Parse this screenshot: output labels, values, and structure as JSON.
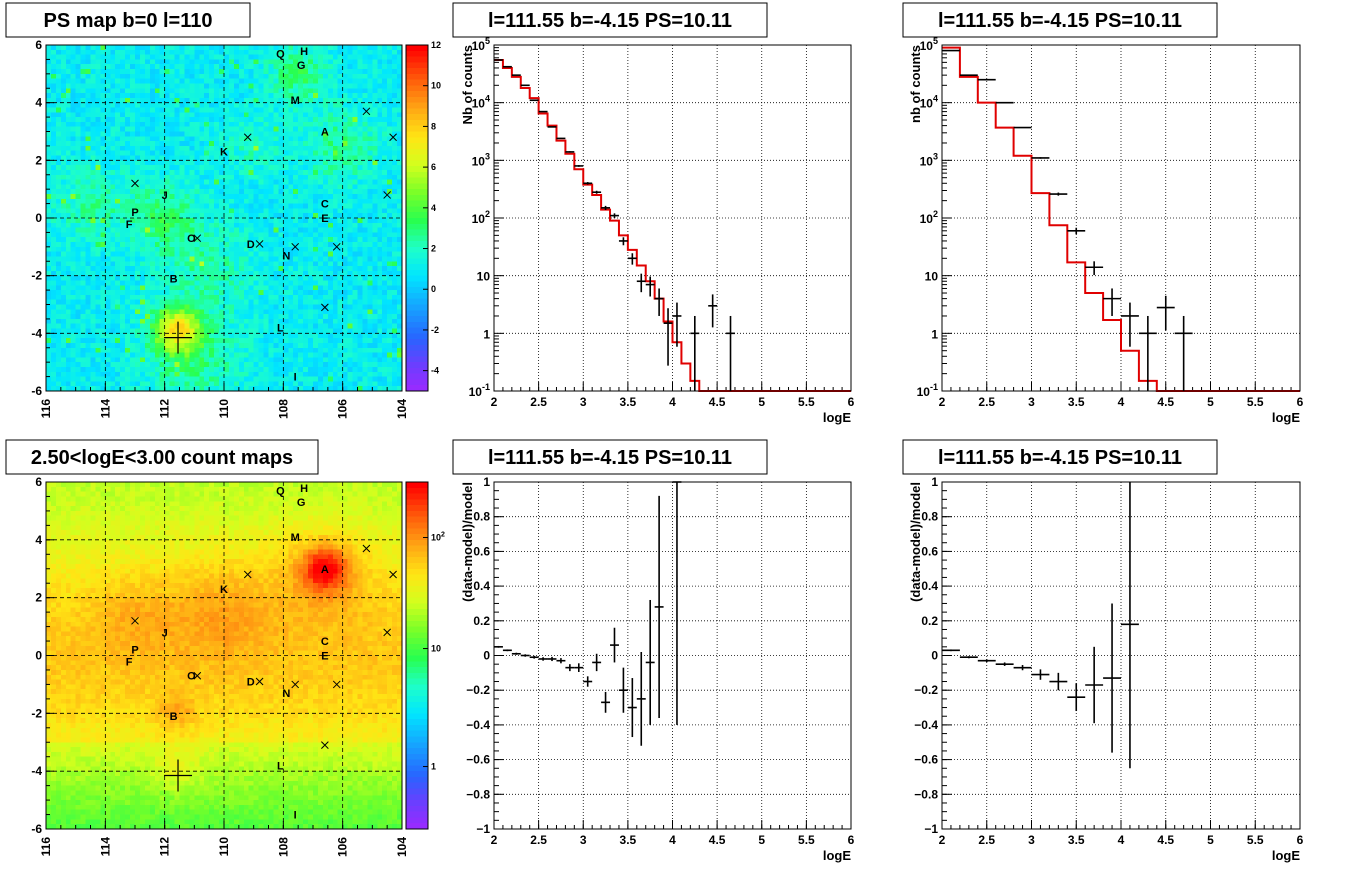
{
  "chart_data": [
    {
      "type": "heatmap",
      "title": "PS map b=0 l=110",
      "x_ticks": [
        "116",
        "114",
        "112",
        "110",
        "108",
        "106",
        "104"
      ],
      "y_ticks": [
        "6",
        "4",
        "2",
        "0",
        "-2",
        "-4",
        "-6"
      ],
      "xlim": [
        116,
        104
      ],
      "ylim": [
        -6,
        6
      ],
      "colorbar_ticks": [
        "12",
        "10",
        "8",
        "6",
        "4",
        "2",
        "0",
        "-2",
        "-4"
      ],
      "colorbar_range": [
        -5,
        12
      ],
      "colorscale": "linear",
      "grid": true,
      "sources": [
        {
          "name": "Q",
          "l": 108.1,
          "b": 5.7
        },
        {
          "name": "H",
          "l": 107.3,
          "b": 5.8
        },
        {
          "name": "G",
          "l": 107.4,
          "b": 5.3
        },
        {
          "name": "M",
          "l": 107.6,
          "b": 4.1
        },
        {
          "name": "A",
          "l": 106.6,
          "b": 3.0
        },
        {
          "name": "K",
          "l": 110.0,
          "b": 2.3
        },
        {
          "name": "J",
          "l": 112.0,
          "b": 0.8
        },
        {
          "name": "P",
          "l": 113.0,
          "b": 0.2
        },
        {
          "name": "F",
          "l": 113.2,
          "b": -0.2
        },
        {
          "name": "C",
          "l": 106.6,
          "b": 0.5
        },
        {
          "name": "E",
          "l": 106.6,
          "b": 0.0
        },
        {
          "name": "O",
          "l": 111.1,
          "b": -0.7
        },
        {
          "name": "D",
          "l": 109.1,
          "b": -0.9
        },
        {
          "name": "N",
          "l": 107.9,
          "b": -1.3
        },
        {
          "name": "B",
          "l": 111.7,
          "b": -2.1
        },
        {
          "name": "L",
          "l": 108.1,
          "b": -3.8
        },
        {
          "name": "I",
          "l": 107.6,
          "b": -5.5
        }
      ],
      "crosses": [
        {
          "l": 113.0,
          "b": 1.2
        },
        {
          "l": 109.2,
          "b": 2.8
        },
        {
          "l": 110.9,
          "b": -0.7
        },
        {
          "l": 108.8,
          "b": -0.9
        },
        {
          "l": 107.6,
          "b": -1.0
        },
        {
          "l": 106.2,
          "b": -1.0
        },
        {
          "l": 106.6,
          "b": -3.1
        },
        {
          "l": 105.2,
          "b": 3.7
        },
        {
          "l": 104.3,
          "b": 2.8
        },
        {
          "l": 104.5,
          "b": 0.8
        }
      ],
      "big_cross": {
        "l": 111.55,
        "b": -4.15
      }
    },
    {
      "type": "line",
      "title": "l=111.55 b=-4.15 PS=10.11",
      "xlabel": "logE",
      "ylabel": "Nb of counts",
      "xlim": [
        2,
        6
      ],
      "ylim": [
        0.1,
        100000
      ],
      "yscale": "log",
      "x_ticks": [
        "2",
        "2.5",
        "3",
        "3.5",
        "4",
        "4.5",
        "5",
        "5.5",
        "6"
      ],
      "y_ticks": [
        "10^-1",
        "1",
        "10",
        "10^2",
        "10^3",
        "10^4",
        "10^5"
      ],
      "grid": true,
      "bin_width": 0.1,
      "data": [
        {
          "x": 2.05,
          "y": 55000
        },
        {
          "x": 2.15,
          "y": 42000
        },
        {
          "x": 2.25,
          "y": 30000
        },
        {
          "x": 2.35,
          "y": 20000
        },
        {
          "x": 2.45,
          "y": 11000
        },
        {
          "x": 2.55,
          "y": 7000
        },
        {
          "x": 2.65,
          "y": 3800
        },
        {
          "x": 2.75,
          "y": 2400
        },
        {
          "x": 2.85,
          "y": 1400
        },
        {
          "x": 2.95,
          "y": 800
        },
        {
          "x": 3.05,
          "y": 400
        },
        {
          "x": 3.15,
          "y": 280
        },
        {
          "x": 3.25,
          "y": 150
        },
        {
          "x": 3.35,
          "y": 110
        },
        {
          "x": 3.45,
          "y": 40
        },
        {
          "x": 3.55,
          "y": 20
        },
        {
          "x": 3.65,
          "y": 8
        },
        {
          "x": 3.75,
          "y": 7
        },
        {
          "x": 3.85,
          "y": 4
        },
        {
          "x": 3.95,
          "y": 1.5
        },
        {
          "x": 4.05,
          "y": 2
        },
        {
          "x": 4.25,
          "y": 1
        },
        {
          "x": 4.45,
          "y": 3
        },
        {
          "x": 4.65,
          "y": 1
        }
      ],
      "model": [
        55000,
        40000,
        28000,
        18000,
        12000,
        6500,
        4000,
        2200,
        1300,
        700,
        380,
        250,
        140,
        90,
        50,
        28,
        15,
        8,
        4,
        1.6,
        0.7,
        0.3,
        0.15,
        0.1,
        0.1,
        0.1,
        0.1,
        0.1,
        0.1,
        0.1,
        0.1,
        0.1,
        0.1,
        0.1,
        0.1,
        0.1,
        0.1,
        0.1,
        0.1,
        0.1
      ]
    },
    {
      "type": "line",
      "title": "l=111.55 b=-4.15 PS=10.11",
      "xlabel": "logE",
      "ylabel": "nb of counts",
      "xlim": [
        2,
        6
      ],
      "ylim": [
        0.1,
        100000
      ],
      "yscale": "log",
      "x_ticks": [
        "2",
        "2.5",
        "3",
        "3.5",
        "4",
        "4.5",
        "5",
        "5.5",
        "6"
      ],
      "y_ticks": [
        "10^-1",
        "1",
        "10",
        "10^2",
        "10^3",
        "10^4",
        "10^5"
      ],
      "grid": true,
      "bin_width": 0.2,
      "data": [
        {
          "x": 2.1,
          "y": 80000
        },
        {
          "x": 2.3,
          "y": 30000
        },
        {
          "x": 2.5,
          "y": 25000
        },
        {
          "x": 2.7,
          "y": 10000
        },
        {
          "x": 2.9,
          "y": 3700
        },
        {
          "x": 3.1,
          "y": 1100
        },
        {
          "x": 3.3,
          "y": 260
        },
        {
          "x": 3.5,
          "y": 60
        },
        {
          "x": 3.7,
          "y": 14
        },
        {
          "x": 3.9,
          "y": 4
        },
        {
          "x": 4.1,
          "y": 2
        },
        {
          "x": 4.3,
          "y": 1
        },
        {
          "x": 4.5,
          "y": 2.8
        },
        {
          "x": 4.7,
          "y": 1
        }
      ],
      "model": [
        90000,
        28000,
        10000,
        3700,
        1200,
        270,
        75,
        17,
        5,
        1.7,
        0.5,
        0.15,
        0.1,
        0.1,
        0.1,
        0.1,
        0.1,
        0.1,
        0.1,
        0.1
      ]
    },
    {
      "type": "heatmap",
      "title": "2.50<logE<3.00 count maps",
      "x_ticks": [
        "116",
        "114",
        "112",
        "110",
        "108",
        "106",
        "104"
      ],
      "y_ticks": [
        "6",
        "4",
        "2",
        "0",
        "-2",
        "-4",
        "-6"
      ],
      "xlim": [
        116,
        104
      ],
      "ylim": [
        -6,
        6
      ],
      "colorbar_ticks": [
        "10^2",
        "10",
        "1"
      ],
      "colorscale": "log",
      "grid": true
    },
    {
      "type": "scatter",
      "title": "l=111.55 b=-4.15 PS=10.11",
      "xlabel": "logE",
      "ylabel": "(data-model)/model",
      "xlim": [
        2,
        6
      ],
      "ylim": [
        -1,
        1
      ],
      "x_ticks": [
        "2",
        "2.5",
        "3",
        "3.5",
        "4",
        "4.5",
        "5",
        "5.5",
        "6"
      ],
      "y_ticks": [
        "1",
        "0.8",
        "0.6",
        "0.4",
        "0.2",
        "0",
        "-0.2",
        "-0.4",
        "-0.6",
        "-0.8",
        "-1"
      ],
      "grid": true,
      "bin_width": 0.1,
      "data": [
        {
          "x": 2.05,
          "y": 0.05,
          "err": 0.005
        },
        {
          "x": 2.15,
          "y": 0.03,
          "err": 0.005
        },
        {
          "x": 2.25,
          "y": 0.01,
          "err": 0.006
        },
        {
          "x": 2.35,
          "y": 0.0,
          "err": 0.007
        },
        {
          "x": 2.45,
          "y": -0.01,
          "err": 0.008
        },
        {
          "x": 2.55,
          "y": -0.02,
          "err": 0.01
        },
        {
          "x": 2.65,
          "y": -0.02,
          "err": 0.012
        },
        {
          "x": 2.75,
          "y": -0.03,
          "err": 0.015
        },
        {
          "x": 2.85,
          "y": -0.07,
          "err": 0.02
        },
        {
          "x": 2.95,
          "y": -0.07,
          "err": 0.025
        },
        {
          "x": 3.05,
          "y": -0.15,
          "err": 0.03
        },
        {
          "x": 3.15,
          "y": -0.04,
          "err": 0.05
        },
        {
          "x": 3.25,
          "y": -0.27,
          "err": 0.06
        },
        {
          "x": 3.35,
          "y": 0.06,
          "err": 0.1
        },
        {
          "x": 3.45,
          "y": -0.2,
          "err": 0.13
        },
        {
          "x": 3.55,
          "y": -0.3,
          "err": 0.17
        },
        {
          "x": 3.65,
          "y": -0.25,
          "err": 0.27
        },
        {
          "x": 3.75,
          "y": -0.04,
          "err": 0.36
        },
        {
          "x": 3.85,
          "y": 0.28,
          "err": 0.64
        },
        {
          "x": 4.05,
          "y": 1.0,
          "err": 1.4
        }
      ]
    },
    {
      "type": "scatter",
      "title": "l=111.55 b=-4.15 PS=10.11",
      "xlabel": "logE",
      "ylabel": "(data-model)/model",
      "xlim": [
        2,
        6
      ],
      "ylim": [
        -1,
        1
      ],
      "x_ticks": [
        "2",
        "2.5",
        "3",
        "3.5",
        "4",
        "4.5",
        "5",
        "5.5",
        "6"
      ],
      "y_ticks": [
        "1",
        "0.8",
        "0.6",
        "0.4",
        "0.2",
        "0",
        "-0.2",
        "-0.4",
        "-0.6",
        "-0.8",
        "-1"
      ],
      "grid": true,
      "bin_width": 0.2,
      "data": [
        {
          "x": 2.1,
          "y": 0.03,
          "err": 0.005
        },
        {
          "x": 2.3,
          "y": -0.01,
          "err": 0.006
        },
        {
          "x": 2.5,
          "y": -0.03,
          "err": 0.008
        },
        {
          "x": 2.7,
          "y": -0.05,
          "err": 0.01
        },
        {
          "x": 2.9,
          "y": -0.07,
          "err": 0.015
        },
        {
          "x": 3.1,
          "y": -0.11,
          "err": 0.03
        },
        {
          "x": 3.3,
          "y": -0.15,
          "err": 0.05
        },
        {
          "x": 3.5,
          "y": -0.24,
          "err": 0.08
        },
        {
          "x": 3.7,
          "y": -0.17,
          "err": 0.22
        },
        {
          "x": 3.9,
          "y": -0.13,
          "err": 0.43
        },
        {
          "x": 4.1,
          "y": 0.18,
          "err": 0.83
        }
      ]
    }
  ]
}
